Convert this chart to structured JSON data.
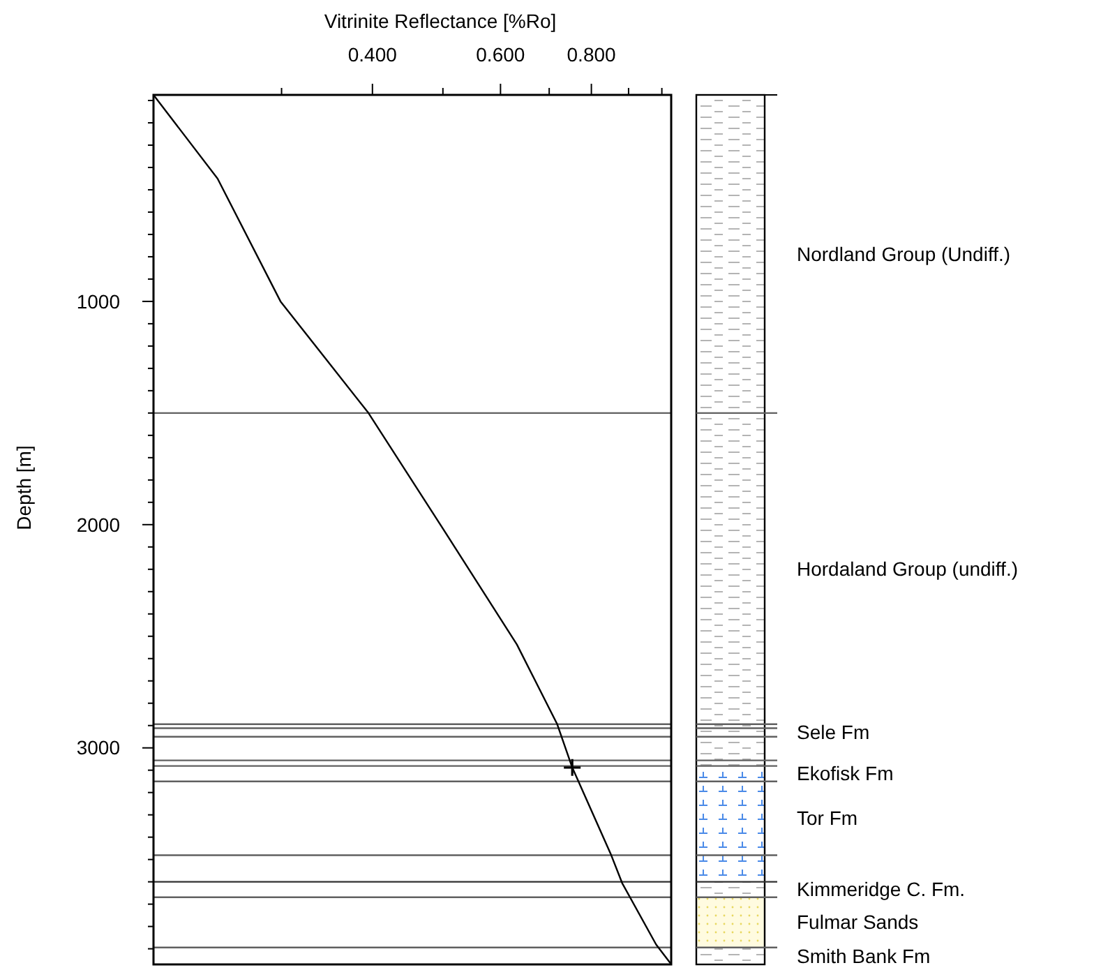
{
  "chart_data": {
    "type": "line",
    "xlabel": "Vitrinite Reflectance [%Ro]",
    "ylabel": "Depth [m]",
    "log": "x",
    "xlim": [
      0.2,
      1.03
    ],
    "xticks": [
      {
        "value": 0.3,
        "label": null
      },
      {
        "value": 0.4,
        "label": "0.400"
      },
      {
        "value": 0.5,
        "label": null
      },
      {
        "value": 0.6,
        "label": "0.600"
      },
      {
        "value": 0.7,
        "label": null
      },
      {
        "value": 0.8,
        "label": "0.800"
      },
      {
        "value": 0.9,
        "label": null
      },
      {
        "value": 1.0,
        "label": null
      }
    ],
    "ylim": [
      3970,
      75
    ],
    "yticks": [
      {
        "value": 100,
        "label": null
      },
      {
        "value": 200,
        "label": null
      },
      {
        "value": 300,
        "label": null
      },
      {
        "value": 400,
        "label": null
      },
      {
        "value": 500,
        "label": null
      },
      {
        "value": 600,
        "label": null
      },
      {
        "value": 700,
        "label": null
      },
      {
        "value": 800,
        "label": null
      },
      {
        "value": 900,
        "label": null
      },
      1000,
      {
        "value": 1100,
        "label": null
      },
      {
        "value": 1200,
        "label": null
      },
      {
        "value": 1300,
        "label": null
      },
      {
        "value": 1400,
        "label": null
      },
      {
        "value": 1500,
        "label": null
      },
      {
        "value": 1600,
        "label": null
      },
      {
        "value": 1700,
        "label": null
      },
      {
        "value": 1800,
        "label": null
      },
      {
        "value": 1900,
        "label": null
      },
      2000,
      {
        "value": 2100,
        "label": null
      },
      {
        "value": 2200,
        "label": null
      },
      {
        "value": 2300,
        "label": null
      },
      {
        "value": 2400,
        "label": null
      },
      {
        "value": 2500,
        "label": null
      },
      {
        "value": 2600,
        "label": null
      },
      {
        "value": 2700,
        "label": null
      },
      {
        "value": 2800,
        "label": null
      },
      {
        "value": 2900,
        "label": null
      },
      3000,
      {
        "value": 3100,
        "label": null
      },
      {
        "value": 3200,
        "label": null
      },
      {
        "value": 3300,
        "label": null
      },
      {
        "value": 3400,
        "label": null
      },
      {
        "value": 3500,
        "label": null
      },
      {
        "value": 3600,
        "label": null
      },
      {
        "value": 3700,
        "label": null
      },
      {
        "value": 3800,
        "label": null
      },
      {
        "value": 3900,
        "label": null
      }
    ],
    "grid": false,
    "series": [
      {
        "color": "#000000",
        "marker": "none",
        "x": [
          0.2,
          0.245,
          0.299,
          0.395,
          0.496,
          0.632,
          0.718,
          0.753,
          0.852,
          0.882,
          0.982,
          1.03
        ],
        "values": [
          75,
          450,
          1000,
          1500,
          2000,
          2537,
          2894,
          3088,
          3481,
          3606,
          3881,
          3969
        ]
      },
      {
        "type": "scatter",
        "color": "#000000",
        "marker": "cross",
        "x": [
          0.753
        ],
        "values": [
          3088
        ]
      }
    ],
    "ref_lines": [
      {
        "axis": "y",
        "value": 1500,
        "color": "#606060"
      },
      {
        "axis": "y",
        "value": 2894,
        "color": "#606060"
      },
      {
        "axis": "y",
        "value": 2912,
        "color": "#606060"
      },
      {
        "axis": "y",
        "value": 2950,
        "color": "#606060"
      },
      {
        "axis": "y",
        "value": 3056,
        "color": "#606060"
      },
      {
        "axis": "y",
        "value": 3081,
        "color": "#606060"
      },
      {
        "axis": "y",
        "value": 3150,
        "color": "#606060"
      },
      {
        "axis": "y",
        "value": 3481,
        "color": "#606060"
      },
      {
        "axis": "y",
        "value": 3600,
        "color": "#303030"
      },
      {
        "axis": "y",
        "value": 3669,
        "color": "#606060"
      },
      {
        "axis": "y",
        "value": 3894,
        "color": "#606060"
      }
    ],
    "annotations": [
      "Nordland Group (Undiff.)",
      "Hordaland Group (undiff.)",
      "Sele Fm",
      "Ekofisk Fm",
      "Tor Fm",
      "Kimmeridge C. Fm.",
      "Fulmar Sands",
      "Smith Bank Fm"
    ]
  }
}
